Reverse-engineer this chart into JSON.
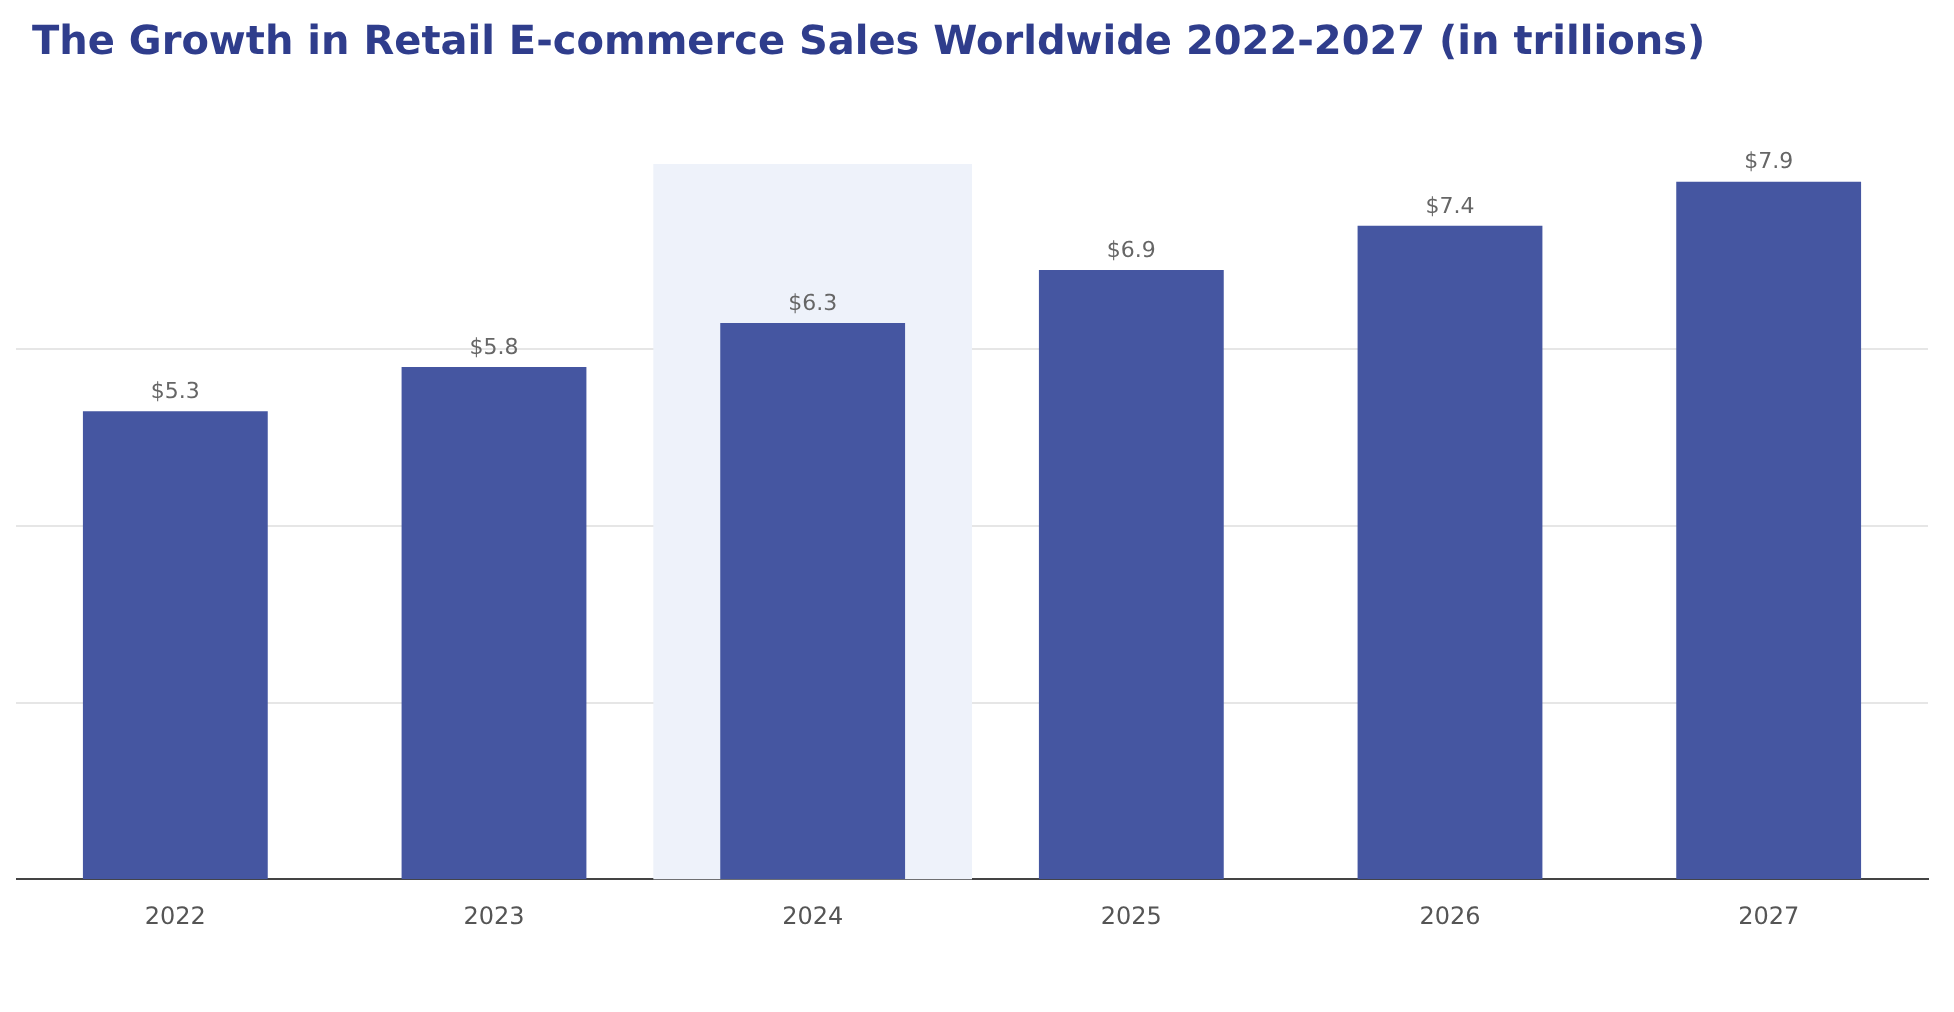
{
  "chart_data": {
    "type": "bar",
    "title": "The Growth in Retail E-commerce Sales Worldwide 2022-2027 (in trillions)",
    "categories": [
      "2022",
      "2023",
      "2024",
      "2025",
      "2026",
      "2027"
    ],
    "values": [
      5.3,
      5.8,
      6.3,
      6.9,
      7.4,
      7.9
    ],
    "value_labels": [
      "$5.3",
      "$5.8",
      "$6.3",
      "$6.9",
      "$7.4",
      "$7.9"
    ],
    "color": "#4556a1",
    "ylim": [
      0,
      8.1
    ],
    "yticks": [
      {
        "value": 2,
        "label": null
      },
      {
        "value": 4,
        "label": null
      },
      {
        "value": 6,
        "label": null
      }
    ],
    "grid": "y",
    "tick_labels": "x",
    "legend": false,
    "bands": [
      {
        "axis": "x",
        "from": "2024",
        "to": "2024",
        "color": "#eef2fa"
      }
    ]
  }
}
